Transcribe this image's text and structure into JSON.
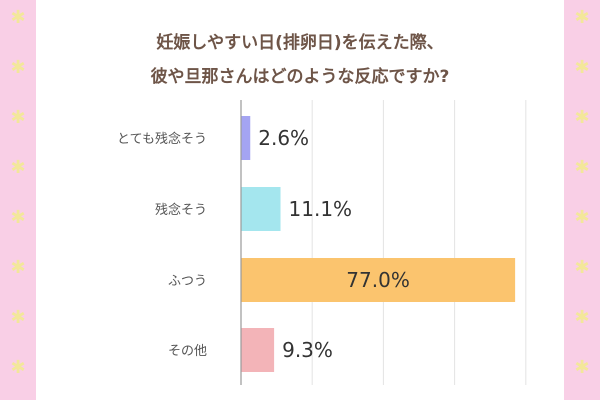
{
  "title_lines": [
    "妊娠しやすい日(排卵日)を伝えた際、",
    "彼や旦那さんはどのような反応ですか?"
  ],
  "chart_data": {
    "type": "bar",
    "orientation": "horizontal",
    "categories": [
      "とても残念そう",
      "残念そう",
      "ふつう",
      "その他"
    ],
    "values": [
      2.6,
      11.1,
      77.0,
      9.3
    ],
    "value_labels": [
      "2.6%",
      "11.1%",
      "77.0%",
      "9.3%"
    ],
    "colors": [
      "#a4a4f2",
      "#a4e6ee",
      "#fbc46e",
      "#f3b4b8"
    ],
    "xlim": [
      0,
      80
    ],
    "grid": true,
    "legend": "none"
  },
  "decoration": {
    "band_color": "#f9cfe6",
    "flower_icon": "daisy-icon",
    "flower_color": "#f3e79a"
  }
}
